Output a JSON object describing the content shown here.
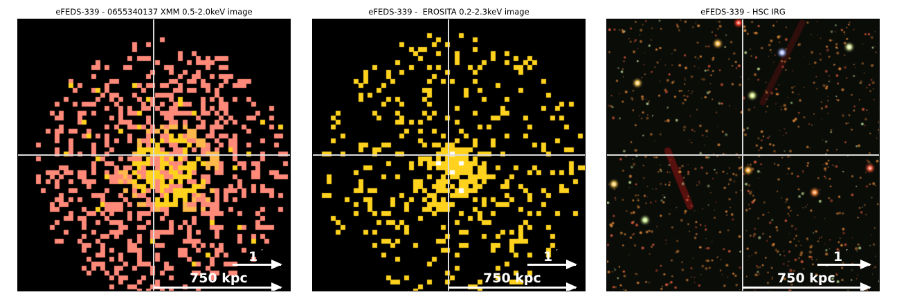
{
  "panels": [
    {
      "id": "xmm",
      "title": "eFEDS-339 - 0655340137 XMM 0.5-2.0keV image",
      "scale_angular": "1",
      "prime": "′",
      "scale_physical": "750 kpc",
      "colors": {
        "low": "#ff8a7a",
        "mid": "#ffb84a",
        "high": "#ffd21e"
      }
    },
    {
      "id": "erosita",
      "title": "eFEDS-339 -  EROSITA 0.2-2.3keV image",
      "scale_angular": "1",
      "prime": "′",
      "scale_physical": "750 kpc",
      "colors": {
        "low": "#ffd21e",
        "high": "#ffffff"
      }
    },
    {
      "id": "hsc",
      "title": "eFEDS-339 - HSC IRG",
      "scale_angular": "1",
      "prime": "′",
      "scale_physical": "750 kpc",
      "colors": {
        "background": "#0a0c08",
        "stars": "#ffb050"
      }
    }
  ]
}
